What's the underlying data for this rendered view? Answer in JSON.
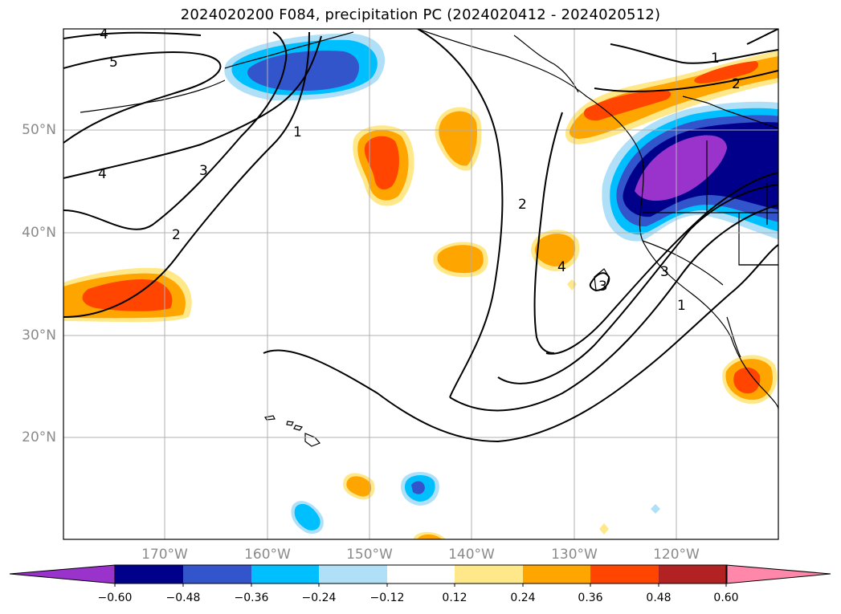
{
  "title": "2024020200 F084, precipitation PC (2024020412 - 2024020512)",
  "lat_labels": [
    "50°N",
    "40°N",
    "30°N",
    "20°N"
  ],
  "lon_labels": [
    "170°W",
    "160°W",
    "150°W",
    "140°W",
    "130°W",
    "120°W"
  ],
  "contour_labels": [
    "4",
    "5",
    "1",
    "3",
    "4",
    "2",
    "2",
    "4",
    "3",
    "1",
    "2",
    "3",
    "1"
  ],
  "colorbar": {
    "colors": [
      "#9933cc",
      "#00008b",
      "#3355cc",
      "#00bfff",
      "#b0e0f8",
      "#ffffff",
      "#ffe88a",
      "#ffa500",
      "#ff4500",
      "#b22222",
      "#ff88aa"
    ],
    "ticks": [
      "−0.60",
      "−0.48",
      "−0.36",
      "−0.24",
      "−0.12",
      "0.12",
      "0.24",
      "0.36",
      "0.48",
      "0.60"
    ]
  },
  "colors": {
    "grid": "#b0b0b0",
    "contour": "#000000",
    "axis_label": "#8a8a8a"
  }
}
